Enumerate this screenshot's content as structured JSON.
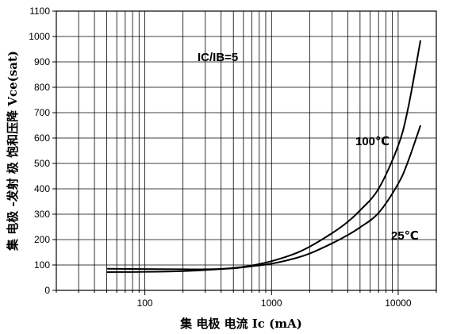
{
  "chart_data": {
    "type": "line",
    "xscale": "log",
    "xlim": [
      20,
      20000
    ],
    "ylim": [
      0,
      1100
    ],
    "x_ticks": [
      100,
      1000,
      10000
    ],
    "x_tick_labels": [
      "100",
      "1000",
      "10000"
    ],
    "y_ticks": [
      0,
      100,
      200,
      300,
      400,
      500,
      600,
      700,
      800,
      900,
      1000,
      1100
    ],
    "y_tick_labels": [
      "0",
      "100",
      "200",
      "300",
      "400",
      "500",
      "600",
      "700",
      "800",
      "900",
      "1000",
      "1100"
    ],
    "xlabel": "集 电极 电流 Ic  (mA)",
    "ylabel": "集 电极 -发射 极  饱和压降 Vce(sat)",
    "grid": true,
    "annotation": "IC/IB=5",
    "series": [
      {
        "name": "100℃",
        "x": [
          50,
          100,
          200,
          300,
          500,
          700,
          1000,
          1500,
          2000,
          3000,
          4000,
          5000,
          7000,
          10000,
          12000,
          15000
        ],
        "y": [
          72,
          73,
          76,
          80,
          88,
          98,
          115,
          143,
          172,
          225,
          270,
          315,
          400,
          570,
          720,
          985
        ]
      },
      {
        "name": "25℃",
        "x": [
          50,
          100,
          200,
          300,
          500,
          700,
          1000,
          1500,
          2000,
          3000,
          4000,
          5000,
          7000,
          10000,
          12000,
          15000
        ],
        "y": [
          85,
          84,
          83,
          83,
          87,
          95,
          105,
          125,
          145,
          185,
          218,
          248,
          305,
          420,
          510,
          650
        ]
      }
    ]
  }
}
